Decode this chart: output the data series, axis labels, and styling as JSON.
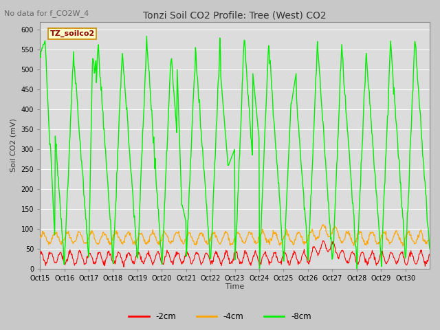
{
  "title": "Tonzi Soil CO2 Profile: Tree (West) CO2",
  "annotation": "No data for f_CO2W_4",
  "ylabel": "Soil CO2 (mV)",
  "xlabel": "Time",
  "legend_label": "TZ_soilco2",
  "series_labels": [
    "-2cm",
    "-4cm",
    "-8cm"
  ],
  "series_colors": [
    "#ff0000",
    "#ffa500",
    "#00ee00"
  ],
  "ylim": [
    0,
    620
  ],
  "yticks": [
    0,
    50,
    100,
    150,
    200,
    250,
    300,
    350,
    400,
    450,
    500,
    550,
    600
  ],
  "xtick_labels": [
    "Oct 15",
    "Oct 16",
    "Oct 17",
    "Oct 18",
    "Oct 19",
    "Oct 20",
    "Oct 21",
    "Oct 22",
    "Oct 23",
    "Oct 24",
    "Oct 25",
    "Oct 26",
    "Oct 27",
    "Oct 28",
    "Oct 29",
    "Oct 30"
  ],
  "fig_bg_color": "#c8c8c8",
  "plot_bg_color": "#dcdcdc",
  "legend_box_color": "#ffffcc",
  "legend_box_edge": "#cc8800",
  "grid_color": "#ffffff",
  "title_fontsize": 10,
  "axis_label_fontsize": 8,
  "tick_fontsize": 7,
  "annotation_fontsize": 8
}
